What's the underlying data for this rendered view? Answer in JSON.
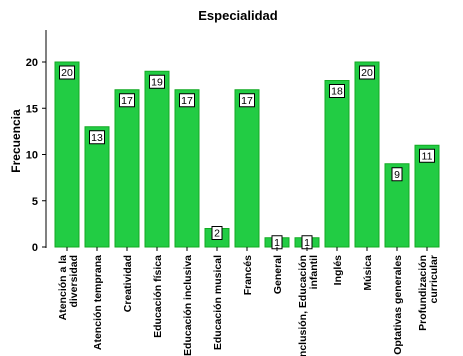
{
  "chart_data": {
    "type": "bar",
    "title": "Especialidad",
    "xlabel": "",
    "ylabel": "Frecuencia",
    "ylim": [
      0,
      22
    ],
    "yticks": [
      0,
      5,
      10,
      15,
      20
    ],
    "grid": false,
    "bar_color": "#22cc44",
    "bar_edge_color": "#11aa22",
    "categories": [
      [
        "Atención a la",
        "diversidad"
      ],
      [
        "Atención temprana"
      ],
      [
        "Creatividad"
      ],
      [
        "Educación física"
      ],
      [
        "Educación inclusiva"
      ],
      [
        "Educación musical"
      ],
      [
        "Francés"
      ],
      [
        "General"
      ],
      [
        "Inclusión, Educación",
        "infantil"
      ],
      [
        "Inglés"
      ],
      [
        "Música"
      ],
      [
        "Optativas generales"
      ],
      [
        "Profundización",
        "curricular"
      ]
    ],
    "values": [
      20,
      13,
      17,
      19,
      17,
      2,
      17,
      1,
      1,
      18,
      20,
      9,
      11
    ]
  }
}
